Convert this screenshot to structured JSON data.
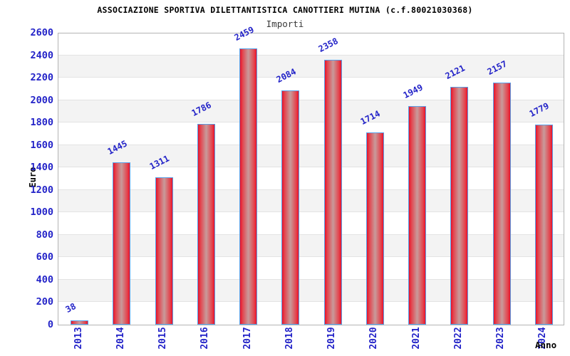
{
  "header": {
    "title": "ASSOCIAZIONE SPORTIVA DILETTANTISTICA CANOTTIERI MUTINA (c.f.80021030368)",
    "subtitle": "Importi"
  },
  "chart_data": {
    "type": "bar",
    "title": "ASSOCIAZIONE SPORTIVA DILETTANTISTICA CANOTTIERI MUTINA (c.f.80021030368)",
    "subtitle": "Importi",
    "xlabel": "Anno",
    "ylabel": "Euro",
    "categories": [
      "2013",
      "2014",
      "2015",
      "2016",
      "2017",
      "2018",
      "2019",
      "2020",
      "2021",
      "2022",
      "2023",
      "2024"
    ],
    "values": [
      38,
      1445,
      1311,
      1786,
      2459,
      2084,
      2358,
      1714,
      1949,
      2121,
      2157,
      1779
    ],
    "ylim": [
      0,
      2600
    ],
    "ytick_step": 200,
    "grid": true,
    "legend": "none",
    "colors": {
      "bar_edge": "#e8112a",
      "bar_mid": "#e4424c",
      "bar_center": "#c89b9b",
      "bar_border": "#58a0e8",
      "label_blue": "#2323c8",
      "grid_line": "#e3e3e3",
      "band_gray": "#f3f3f3",
      "plot_border": "#b4b4b4"
    }
  }
}
